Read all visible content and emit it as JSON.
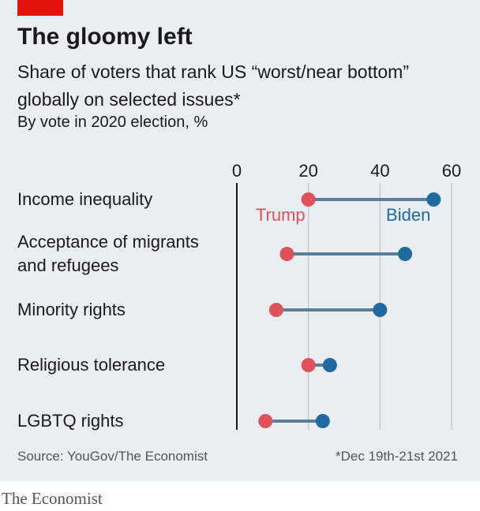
{
  "chart_data": {
    "type": "dumbbell",
    "title": "The gloomy left",
    "subtitle": "Share of voters that rank US “worst/near bottom” globally on selected issues*",
    "note": "By vote in 2020 election, %",
    "categories": [
      "Income inequality",
      "Acceptance of migrants and refugees",
      "Minority rights",
      "Religious tolerance",
      "LGBTQ rights"
    ],
    "series": [
      {
        "name": "Trump",
        "color": "#e0525a",
        "values": [
          20,
          14,
          11,
          20,
          8
        ]
      },
      {
        "name": "Biden",
        "color": "#1f6aa0",
        "values": [
          55,
          47,
          40,
          26,
          24
        ]
      }
    ],
    "xlim": [
      0,
      60
    ],
    "xticks": [
      0,
      20,
      40,
      60
    ],
    "grid": true,
    "source": "Source: YouGov/The Economist",
    "footnote": "*Dec 19th-21st 2021",
    "brand": "The Economist"
  }
}
